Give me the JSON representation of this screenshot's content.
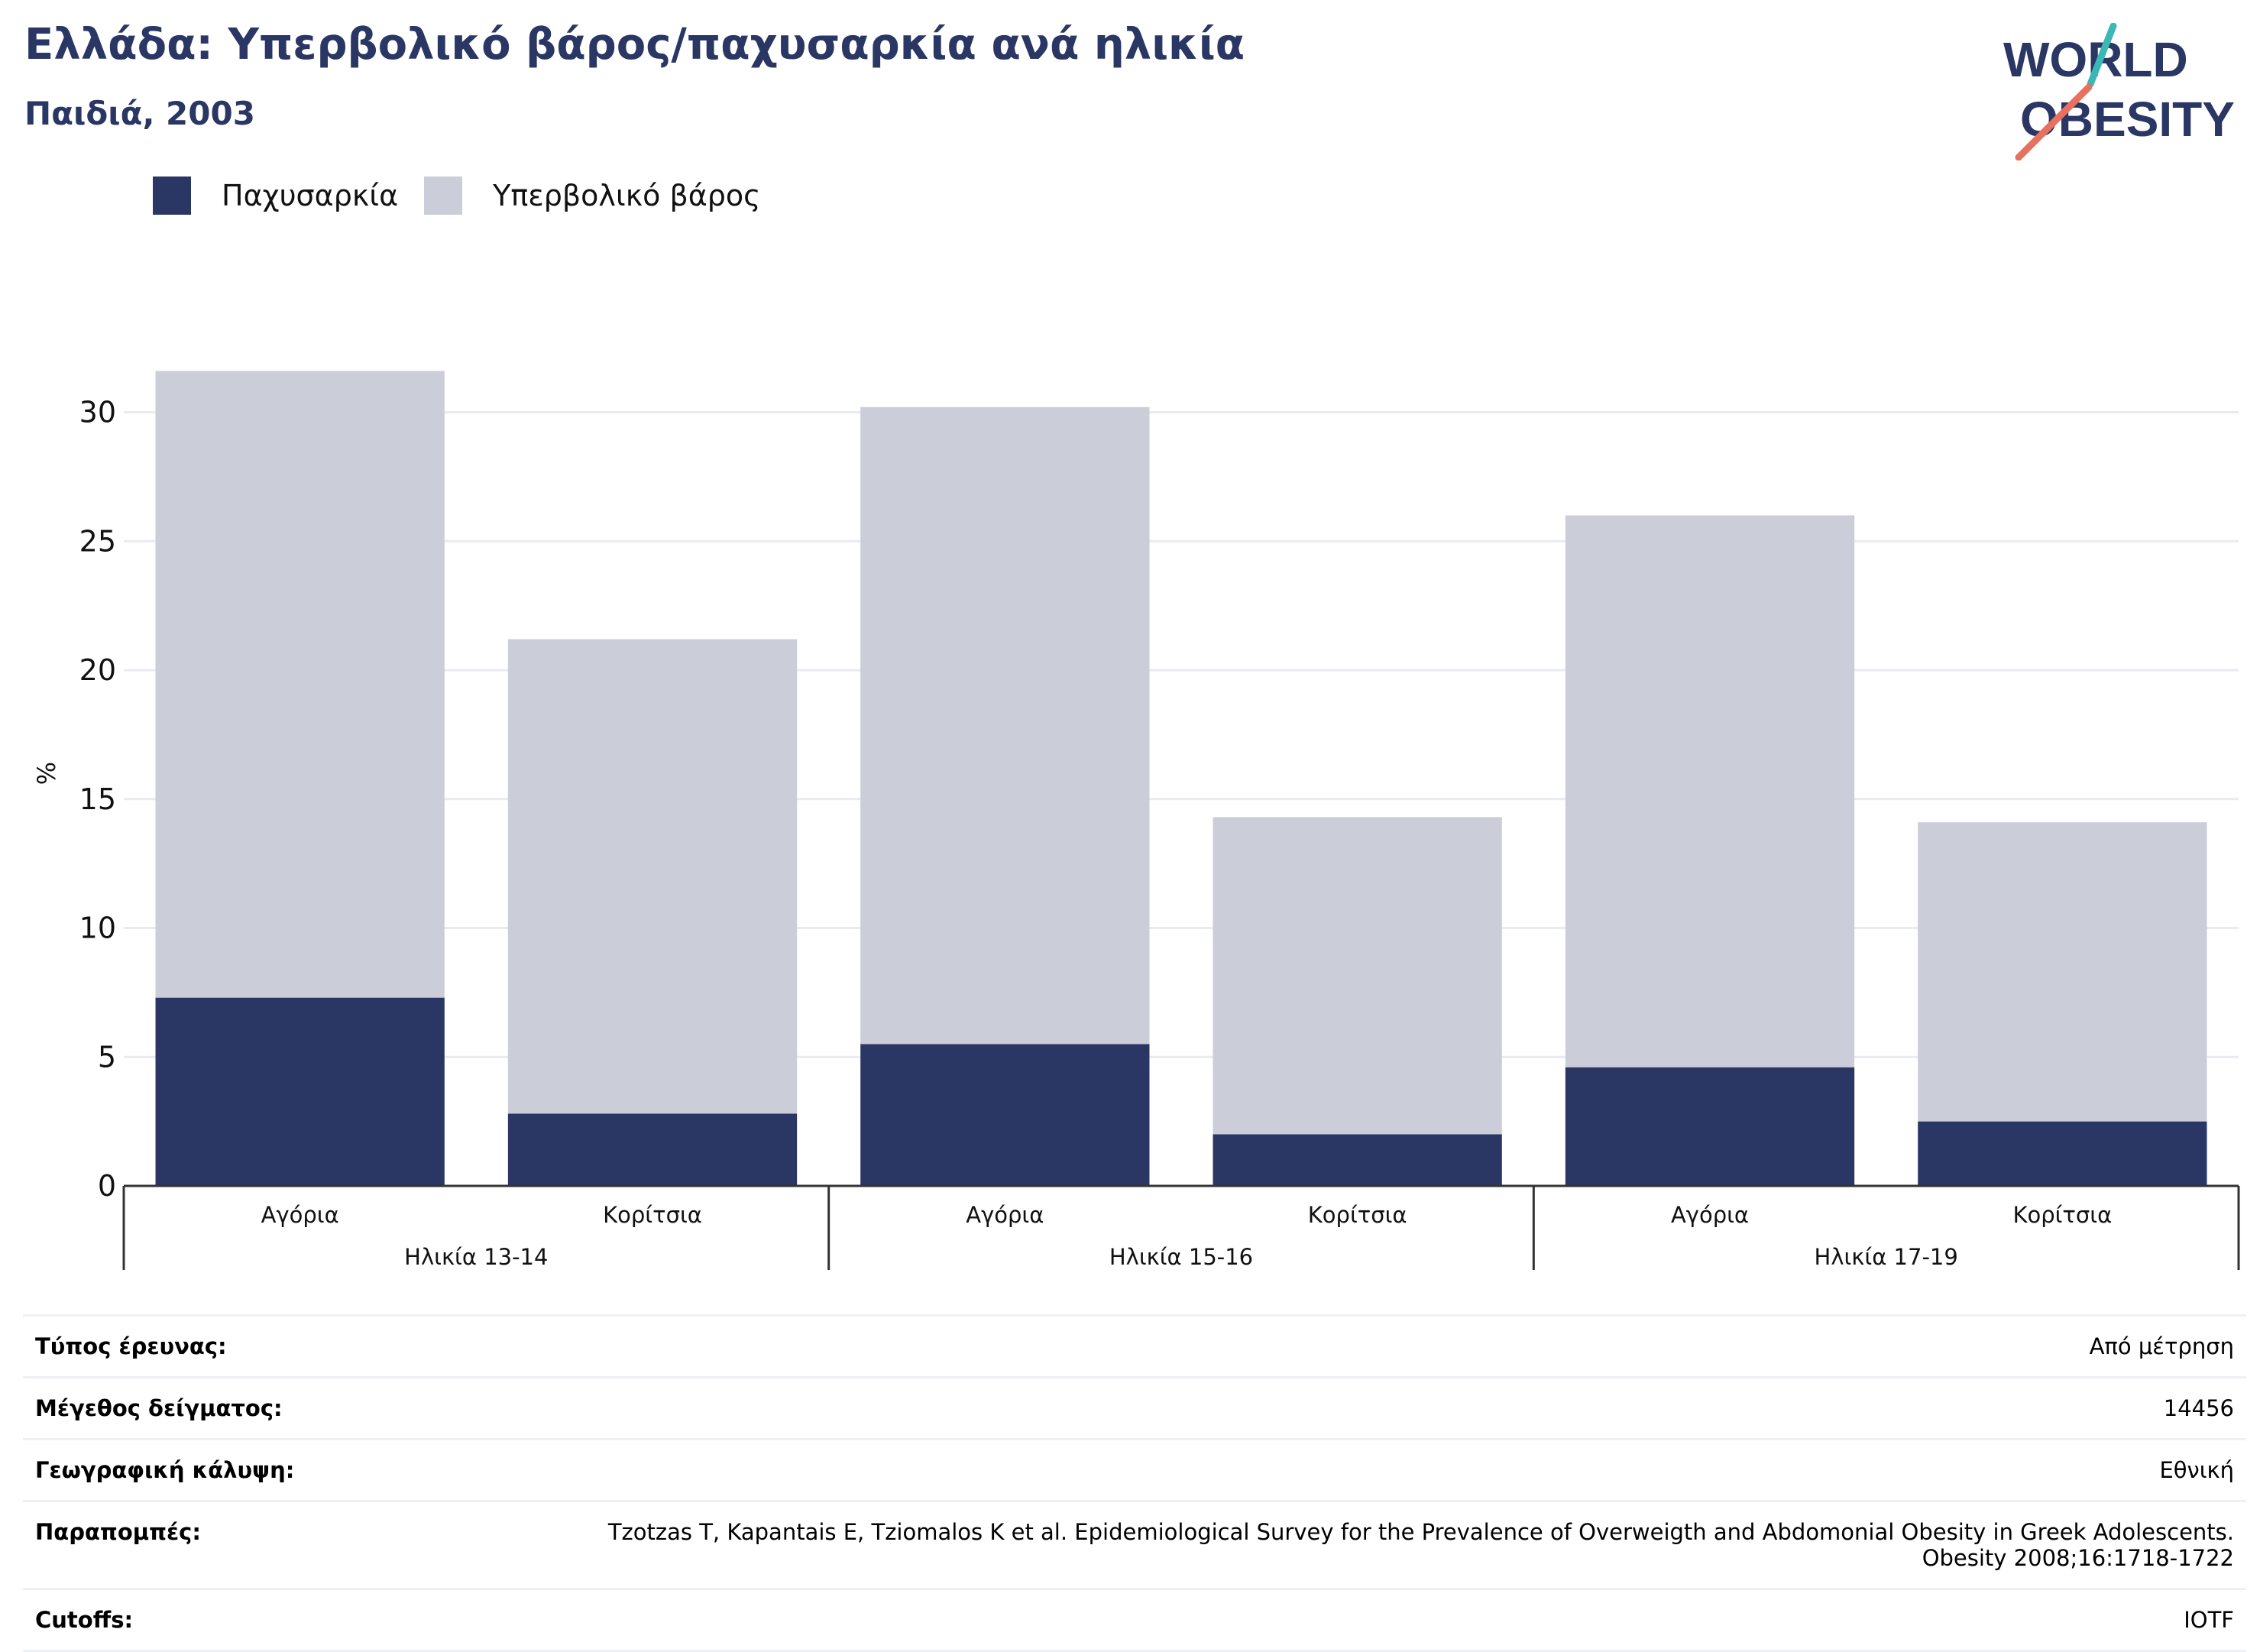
{
  "header": {
    "title": "Ελλάδα: Υπερβολικό βάρος/παχυσαρκία ανά ηλικία",
    "subtitle": "Παιδιά, 2003"
  },
  "logo": {
    "line1": "WORLD",
    "line2": "OBESITY"
  },
  "colors": {
    "obesity": "#2a3663",
    "overweight": "#cbcdd8",
    "grid": "#e9ebf1",
    "axis": "#333333",
    "text": "#111111"
  },
  "chart_data": {
    "type": "bar",
    "stacked": true,
    "ylabel": "%",
    "ylim": [
      0,
      32
    ],
    "yticks": [
      0,
      5,
      10,
      15,
      20,
      25,
      30
    ],
    "grid": true,
    "legend_position": "top-left",
    "categories": [
      "Αγόρια",
      "Κορίτσια",
      "Αγόρια",
      "Κορίτσια",
      "Αγόρια",
      "Κορίτσια"
    ],
    "groups": [
      {
        "label": "Ηλικία 13-14",
        "span": [
          0,
          1
        ]
      },
      {
        "label": "Ηλικία 15-16",
        "span": [
          2,
          3
        ]
      },
      {
        "label": "Ηλικία 17-19",
        "span": [
          4,
          5
        ]
      }
    ],
    "series": [
      {
        "name": "Παχυσαρκία",
        "values": [
          7.3,
          2.8,
          5.5,
          2.0,
          4.6,
          2.5
        ]
      },
      {
        "name": "Υπερβολικό βάρος",
        "values": [
          24.3,
          18.4,
          24.7,
          12.3,
          21.4,
          11.6
        ]
      }
    ]
  },
  "info": [
    {
      "label": "Τύπος έρευνας:",
      "value": "Από μέτρηση"
    },
    {
      "label": "Μέγεθος δείγματος:",
      "value": "14456"
    },
    {
      "label": "Γεωγραφική κάλυψη:",
      "value": "Εθνική"
    },
    {
      "label": "Παραπομπές:",
      "value": "Tzotzas T, Kapantais E, Tziomalos K et al. Epidemiological Survey for the Prevalence of Overweigth and Abdomonial Obesity in Greek Adolescents. Obesity 2008;16:1718-1722"
    },
    {
      "label": "Cutoffs:",
      "value": "IOTF"
    }
  ]
}
